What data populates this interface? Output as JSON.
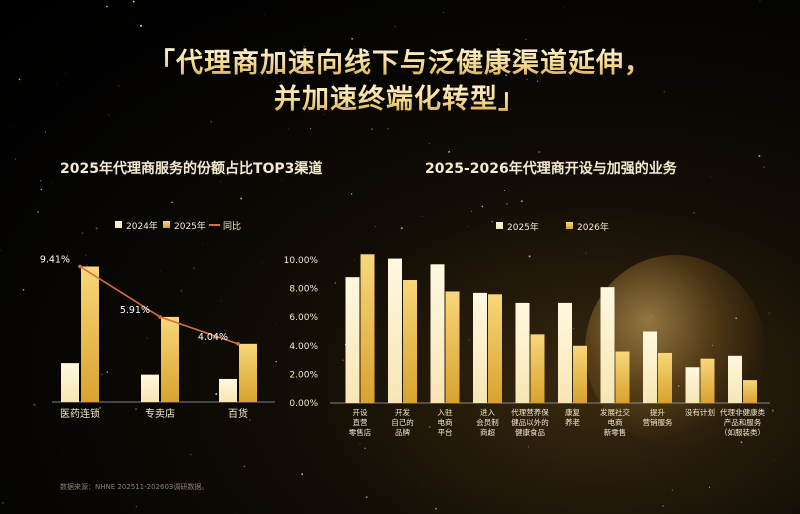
{
  "title": {
    "line1": "「代理商加速向线下与泛健康渠道延伸，",
    "line2": "并加速终端化转型」"
  },
  "footnote": "数据来源：NHNE 202511-202603调研数据。",
  "colors": {
    "light_bar": "#f7e6b4",
    "gold_bar": "#f2c04c",
    "line": "#d4703a",
    "text": "#f4ead0"
  },
  "chart_data": [
    {
      "type": "bar",
      "title": "2025年代理商服务的份额占比TOP3渠道",
      "categories": [
        "医药连锁",
        "专卖店",
        "百货"
      ],
      "series": [
        {
          "name": "2024年",
          "values": [
            2.7,
            1.9,
            1.6
          ]
        },
        {
          "name": "2025年",
          "values": [
            9.41,
            5.91,
            4.04
          ]
        }
      ],
      "line_series": {
        "name": "同比",
        "values": [
          9.41,
          5.91,
          4.04
        ]
      },
      "data_labels": [
        "9.41%",
        "5.91%",
        "4.04%"
      ],
      "legend": "top"
    },
    {
      "type": "bar",
      "title": "2025-2026年代理商开设与加强的业务",
      "categories": [
        "开设\n直营\n零售店",
        "开发\n自己的\n品牌",
        "入驻\n电商\n平台",
        "进入\n会员制\n商超",
        "代理营养保\n健品以外的\n健康食品",
        "康复\n养老",
        "发展社交\n电商\n新零售",
        "提升\n营销服务",
        "没有计划",
        "代理非健康类\n产品和服务\n（如服装类）"
      ],
      "series": [
        {
          "name": "2025年",
          "values": [
            8.8,
            10.1,
            9.7,
            7.7,
            7.0,
            7.0,
            8.1,
            5.0,
            2.5,
            3.3
          ]
        },
        {
          "name": "2026年",
          "values": [
            10.4,
            8.6,
            7.8,
            7.6,
            4.8,
            4.0,
            3.6,
            3.5,
            3.1,
            1.6
          ]
        }
      ],
      "y_ticks": [
        "0.00%",
        "2.00%",
        "4.00%",
        "6.00%",
        "8.00%",
        "10.00%"
      ],
      "ylim": [
        0,
        10
      ],
      "legend": "top"
    }
  ]
}
